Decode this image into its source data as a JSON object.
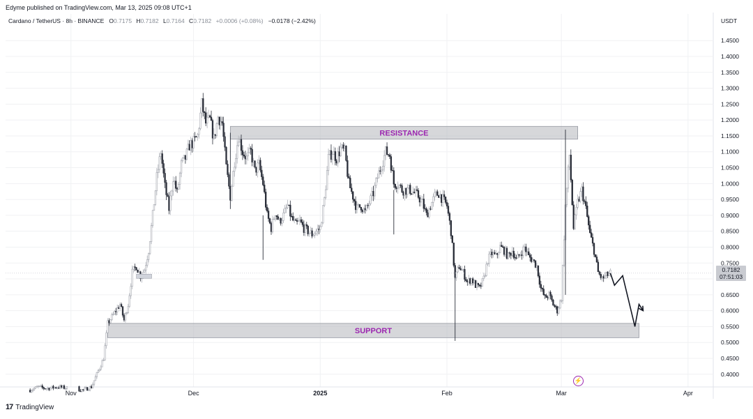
{
  "header": {
    "published_line": "Edyme published on TradingView.com, Mar 13, 2025 09:08 UTC+1",
    "symbol_line": "Cardano / TetherUS · 8h · BINANCE",
    "ohlc": {
      "o_label": "O",
      "o_value": "0.7175",
      "h_label": "H",
      "h_value": "0.7182",
      "l_label": "L",
      "l_value": "0.7164",
      "c_label": "C",
      "c_value": "0.7182",
      "change": "+0.0006 (+0.08%)",
      "extra": "−0.0178 (−2.42%)"
    },
    "currency": "USDT"
  },
  "price_tag": {
    "price": "0.7182",
    "countdown": "07:51:03"
  },
  "brand": "TradingView",
  "chart_data": {
    "type": "candlestick",
    "ylim": [
      0.36,
      1.49
    ],
    "y_ticks": [
      "1.4500",
      "1.4000",
      "1.3500",
      "1.3000",
      "1.2500",
      "1.2000",
      "1.1500",
      "1.1000",
      "1.0500",
      "1.0000",
      "0.9500",
      "0.9000",
      "0.8500",
      "0.8000",
      "0.7500",
      "0.7000",
      "0.6500",
      "0.6000",
      "0.5500",
      "0.5000",
      "0.4500",
      "0.4000"
    ],
    "y_tick_values": [
      1.45,
      1.4,
      1.35,
      1.3,
      1.25,
      1.2,
      1.15,
      1.1,
      1.05,
      1.0,
      0.95,
      0.9,
      0.85,
      0.8,
      0.75,
      0.7,
      0.65,
      0.6,
      0.55,
      0.5,
      0.45,
      0.4
    ],
    "x_ticks": [
      {
        "label": "Nov",
        "date": "2024-11-01"
      },
      {
        "label": "Dec",
        "date": "2024-12-01"
      },
      {
        "label": "2025",
        "date": "2025-01-01",
        "bold": true
      },
      {
        "label": "Feb",
        "date": "2025-02-01"
      },
      {
        "label": "Mar",
        "date": "2025-03-01"
      },
      {
        "label": "Apr",
        "date": "2025-04-01"
      }
    ],
    "price_path": [
      [
        "2024-10-22",
        0.35
      ],
      [
        "2024-10-24",
        0.36
      ],
      [
        "2024-10-26",
        0.355
      ],
      [
        "2024-10-29",
        0.36
      ],
      [
        "2024-11-01",
        0.355
      ],
      [
        "2024-11-04",
        0.35
      ],
      [
        "2024-11-06",
        0.36
      ],
      [
        "2024-11-07",
        0.39
      ],
      [
        "2024-11-09",
        0.45
      ],
      [
        "2024-11-10",
        0.56
      ],
      [
        "2024-11-11",
        0.58
      ],
      [
        "2024-11-12",
        0.6
      ],
      [
        "2024-11-13",
        0.62
      ],
      [
        "2024-11-14",
        0.57
      ],
      [
        "2024-11-15",
        0.62
      ],
      [
        "2024-11-16",
        0.72
      ],
      [
        "2024-11-17",
        0.74
      ],
      [
        "2024-11-18",
        0.71
      ],
      [
        "2024-11-19",
        0.73
      ],
      [
        "2024-11-20",
        0.79
      ],
      [
        "2024-11-21",
        0.9
      ],
      [
        "2024-11-22",
        1.02
      ],
      [
        "2024-11-23",
        1.1
      ],
      [
        "2024-11-24",
        0.99
      ],
      [
        "2024-11-25",
        0.92
      ],
      [
        "2024-11-26",
        1.02
      ],
      [
        "2024-11-27",
        0.97
      ],
      [
        "2024-11-28",
        1.06
      ],
      [
        "2024-11-29",
        1.08
      ],
      [
        "2024-11-30",
        1.12
      ],
      [
        "2024-12-01",
        1.13
      ],
      [
        "2024-12-02",
        1.15
      ],
      [
        "2024-12-03",
        1.25
      ],
      [
        "2024-12-04",
        1.19
      ],
      [
        "2024-12-05",
        1.2
      ],
      [
        "2024-12-06",
        1.14
      ],
      [
        "2024-12-07",
        1.21
      ],
      [
        "2024-12-08",
        1.19
      ],
      [
        "2024-12-09",
        1.05
      ],
      [
        "2024-12-10",
        0.96
      ],
      [
        "2024-12-11",
        1.07
      ],
      [
        "2024-12-12",
        1.15
      ],
      [
        "2024-12-13",
        1.1
      ],
      [
        "2024-12-14",
        1.08
      ],
      [
        "2024-12-15",
        1.1
      ],
      [
        "2024-12-16",
        1.04
      ],
      [
        "2024-12-17",
        1.06
      ],
      [
        "2024-12-18",
        1.0
      ],
      [
        "2024-12-19",
        0.9
      ],
      [
        "2024-12-20",
        0.86
      ],
      [
        "2024-12-21",
        0.91
      ],
      [
        "2024-12-22",
        0.88
      ],
      [
        "2024-12-23",
        0.9
      ],
      [
        "2024-12-24",
        0.93
      ],
      [
        "2024-12-25",
        0.89
      ],
      [
        "2024-12-26",
        0.87
      ],
      [
        "2024-12-27",
        0.88
      ],
      [
        "2024-12-28",
        0.86
      ],
      [
        "2024-12-29",
        0.85
      ],
      [
        "2024-12-30",
        0.84
      ],
      [
        "2024-12-31",
        0.85
      ],
      [
        "2025-01-01",
        0.86
      ],
      [
        "2025-01-02",
        0.95
      ],
      [
        "2025-01-03",
        1.08
      ],
      [
        "2025-01-04",
        1.1
      ],
      [
        "2025-01-05",
        1.08
      ],
      [
        "2025-01-06",
        1.11
      ],
      [
        "2025-01-07",
        1.1
      ],
      [
        "2025-01-08",
        1.0
      ],
      [
        "2025-01-09",
        0.96
      ],
      [
        "2025-01-10",
        0.92
      ],
      [
        "2025-01-11",
        0.93
      ],
      [
        "2025-01-12",
        0.91
      ],
      [
        "2025-01-13",
        0.94
      ],
      [
        "2025-01-14",
        0.97
      ],
      [
        "2025-01-15",
        1.02
      ],
      [
        "2025-01-16",
        1.06
      ],
      [
        "2025-01-17",
        1.1
      ],
      [
        "2025-01-18",
        1.09
      ],
      [
        "2025-01-19",
        1.0
      ],
      [
        "2025-01-20",
        1.0
      ],
      [
        "2025-01-21",
        0.98
      ],
      [
        "2025-01-22",
        0.98
      ],
      [
        "2025-01-23",
        0.98
      ],
      [
        "2025-01-24",
        0.97
      ],
      [
        "2025-01-25",
        0.96
      ],
      [
        "2025-01-26",
        0.94
      ],
      [
        "2025-01-27",
        0.9
      ],
      [
        "2025-01-28",
        0.93
      ],
      [
        "2025-01-29",
        0.96
      ],
      [
        "2025-01-30",
        0.97
      ],
      [
        "2025-01-31",
        0.95
      ],
      [
        "2025-02-01",
        0.93
      ],
      [
        "2025-02-02",
        0.85
      ],
      [
        "2025-02-03",
        0.7
      ],
      [
        "2025-02-04",
        0.74
      ],
      [
        "2025-02-05",
        0.72
      ],
      [
        "2025-02-06",
        0.69
      ],
      [
        "2025-02-07",
        0.7
      ],
      [
        "2025-02-08",
        0.68
      ],
      [
        "2025-02-09",
        0.67
      ],
      [
        "2025-02-10",
        0.7
      ],
      [
        "2025-02-11",
        0.76
      ],
      [
        "2025-02-12",
        0.78
      ],
      [
        "2025-02-13",
        0.77
      ],
      [
        "2025-02-14",
        0.8
      ],
      [
        "2025-02-15",
        0.79
      ],
      [
        "2025-02-16",
        0.77
      ],
      [
        "2025-02-17",
        0.79
      ],
      [
        "2025-02-18",
        0.76
      ],
      [
        "2025-02-19",
        0.78
      ],
      [
        "2025-02-20",
        0.8
      ],
      [
        "2025-02-21",
        0.77
      ],
      [
        "2025-02-22",
        0.76
      ],
      [
        "2025-02-23",
        0.74
      ],
      [
        "2025-02-24",
        0.67
      ],
      [
        "2025-02-25",
        0.64
      ],
      [
        "2025-02-26",
        0.65
      ],
      [
        "2025-02-27",
        0.62
      ],
      [
        "2025-02-28",
        0.6
      ],
      [
        "2025-03-01",
        0.64
      ],
      [
        "2025-03-02",
        0.93
      ],
      [
        "2025-03-03",
        1.09
      ],
      [
        "2025-03-04",
        0.86
      ],
      [
        "2025-03-05",
        0.94
      ],
      [
        "2025-03-06",
        0.98
      ],
      [
        "2025-03-07",
        0.92
      ],
      [
        "2025-03-08",
        0.84
      ],
      [
        "2025-03-09",
        0.79
      ],
      [
        "2025-03-10",
        0.72
      ],
      [
        "2025-03-11",
        0.7
      ],
      [
        "2025-03-12",
        0.71
      ],
      [
        "2025-03-13",
        0.718
      ]
    ],
    "projection": [
      [
        "2025-03-13",
        0.718
      ],
      [
        "2025-03-14",
        0.68
      ],
      [
        "2025-03-16",
        0.71
      ],
      [
        "2025-03-19",
        0.55
      ],
      [
        "2025-03-20",
        0.62
      ],
      [
        "2025-03-21",
        0.6
      ]
    ],
    "annotations": [
      {
        "label": "RESISTANCE",
        "x_from": "2024-12-10",
        "x_to": "2025-03-05",
        "y_from": 1.14,
        "y_to": 1.18
      },
      {
        "label": "SUPPORT",
        "x_from": "2024-11-10",
        "x_to": "2025-03-20",
        "y_from": 0.515,
        "y_to": 0.56
      }
    ],
    "last_price": 0.7182
  }
}
